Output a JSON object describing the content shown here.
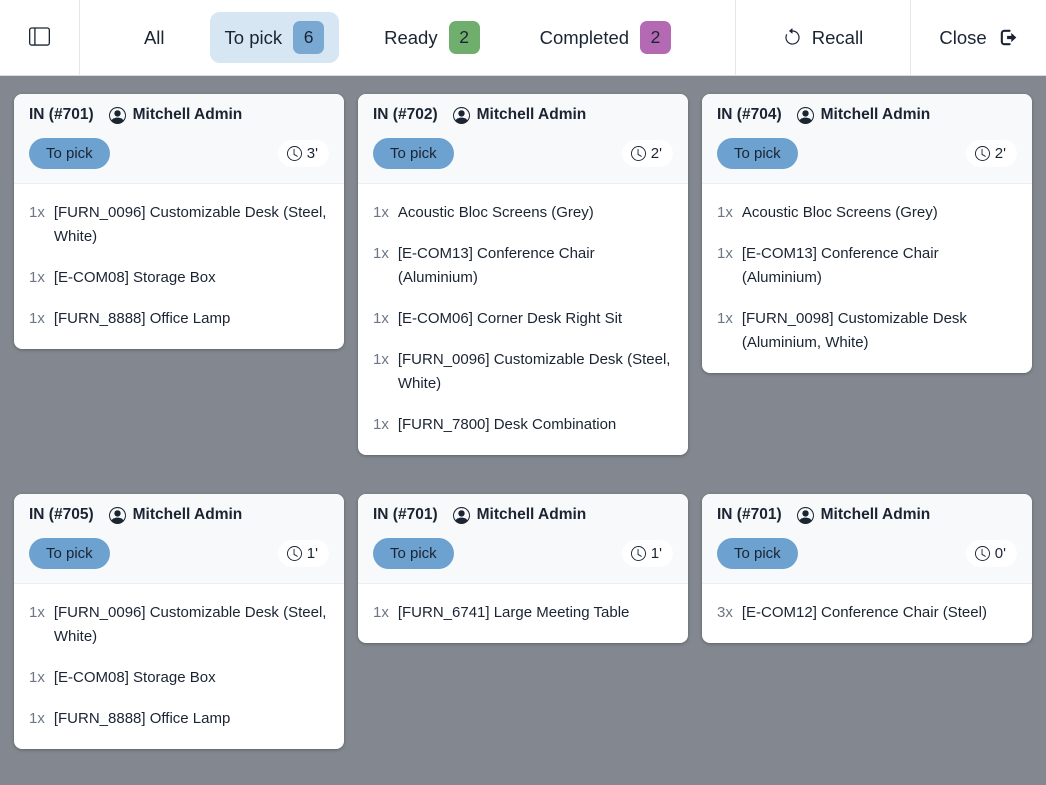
{
  "toolbar": {
    "tabs": [
      {
        "label": "All",
        "count": null,
        "active": false,
        "badge_color": null
      },
      {
        "label": "To pick",
        "count": "6",
        "active": true,
        "badge_color": "#79a9d3"
      },
      {
        "label": "Ready",
        "count": "2",
        "active": false,
        "badge_color": "#6fae6c"
      },
      {
        "label": "Completed",
        "count": "2",
        "active": false,
        "badge_color": "#b46ab3"
      }
    ],
    "recall_label": "Recall",
    "close_label": "Close"
  },
  "colors": {
    "tab_active_bg": "#d7e6f3",
    "status_pill": "#6da2d0",
    "board_bg": "#83878f"
  },
  "cards": [
    {
      "reference": "IN (#701)",
      "owner": "Mitchell Admin",
      "status": "To pick",
      "time": "3'",
      "items": [
        {
          "qty": "1x",
          "name": "[FURN_0096] Customizable Desk (Steel, White)"
        },
        {
          "qty": "1x",
          "name": "[E-COM08] Storage Box"
        },
        {
          "qty": "1x",
          "name": "[FURN_8888] Office Lamp"
        }
      ]
    },
    {
      "reference": "IN (#702)",
      "owner": "Mitchell Admin",
      "status": "To pick",
      "time": "2'",
      "items": [
        {
          "qty": "1x",
          "name": "Acoustic Bloc Screens (Grey)"
        },
        {
          "qty": "1x",
          "name": "[E-COM13] Conference Chair (Aluminium)"
        },
        {
          "qty": "1x",
          "name": "[E-COM06] Corner Desk Right Sit"
        },
        {
          "qty": "1x",
          "name": "[FURN_0096] Customizable Desk (Steel, White)"
        },
        {
          "qty": "1x",
          "name": "[FURN_7800] Desk Combination"
        }
      ]
    },
    {
      "reference": "IN (#704)",
      "owner": "Mitchell Admin",
      "status": "To pick",
      "time": "2'",
      "items": [
        {
          "qty": "1x",
          "name": "Acoustic Bloc Screens (Grey)"
        },
        {
          "qty": "1x",
          "name": "[E-COM13] Conference Chair (Aluminium)"
        },
        {
          "qty": "1x",
          "name": "[FURN_0098] Customizable Desk (Aluminium, White)"
        }
      ]
    },
    {
      "reference": "IN (#705)",
      "owner": "Mitchell Admin",
      "status": "To pick",
      "time": "1'",
      "items": [
        {
          "qty": "1x",
          "name": "[FURN_0096] Customizable Desk (Steel, White)"
        },
        {
          "qty": "1x",
          "name": "[E-COM08] Storage Box"
        },
        {
          "qty": "1x",
          "name": "[FURN_8888] Office Lamp"
        }
      ]
    },
    {
      "reference": "IN (#701)",
      "owner": "Mitchell Admin",
      "status": "To pick",
      "time": "1'",
      "items": [
        {
          "qty": "1x",
          "name": "[FURN_6741] Large Meeting Table"
        }
      ]
    },
    {
      "reference": "IN (#701)",
      "owner": "Mitchell Admin",
      "status": "To pick",
      "time": "0'",
      "items": [
        {
          "qty": "3x",
          "name": "[E-COM12] Conference Chair (Steel)"
        }
      ]
    }
  ]
}
